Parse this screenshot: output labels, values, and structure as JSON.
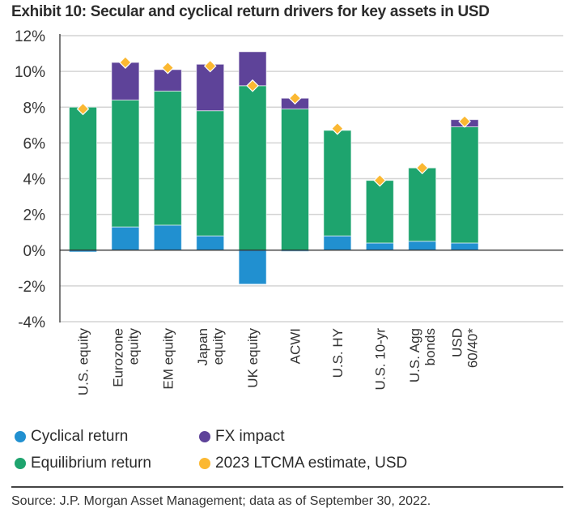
{
  "chart_data": {
    "type": "bar",
    "stacked": true,
    "title": "Exhibit 10: Secular and cyclical return drivers for key assets in USD",
    "xlabel": "",
    "ylabel": "",
    "ylim": [
      -4,
      12
    ],
    "yticks": [
      12,
      10,
      8,
      6,
      4,
      2,
      0,
      -2,
      -4
    ],
    "ytick_labels": [
      "12%",
      "10%",
      "8%",
      "6%",
      "4%",
      "2%",
      "0%",
      "-2%",
      "-4%"
    ],
    "grid": true,
    "categories": [
      [
        "U.S. equity"
      ],
      [
        "Eurozone",
        "equity"
      ],
      [
        "EM equity"
      ],
      [
        "Japan",
        "equity"
      ],
      [
        "UK equity"
      ],
      [
        "ACWI"
      ],
      [
        "U.S. HY"
      ],
      [
        "U.S. 10-yr"
      ],
      [
        "U.S. Agg",
        "bonds"
      ],
      [
        "USD",
        "60/40*"
      ]
    ],
    "series": [
      {
        "name": "Cyclical return",
        "color": "#2190d0",
        "values": [
          -0.1,
          1.3,
          1.4,
          0.8,
          -1.9,
          -0.05,
          0.8,
          0.4,
          0.5,
          0.4
        ]
      },
      {
        "name": "Equilibrium return",
        "color": "#1ea46e",
        "values": [
          8.0,
          7.1,
          7.5,
          7.0,
          9.2,
          7.9,
          5.9,
          3.5,
          4.1,
          6.5
        ]
      },
      {
        "name": "FX impact",
        "color": "#5e4399",
        "values": [
          0,
          2.1,
          1.2,
          2.6,
          1.9,
          0.6,
          0,
          0,
          0,
          0.4
        ]
      },
      {
        "name": "2023 LTCMA estimate, USD",
        "color": "#fbb832",
        "marker": "diamond",
        "values": [
          7.9,
          10.5,
          10.2,
          10.3,
          9.2,
          8.5,
          6.8,
          3.9,
          4.6,
          7.2
        ]
      }
    ],
    "legend_position": "bottom"
  },
  "legend": [
    {
      "label": "Cyclical return",
      "color": "#2190d0"
    },
    {
      "label": "FX impact",
      "color": "#5e4399"
    },
    {
      "label": "Equilibrium return",
      "color": "#1ea46e"
    },
    {
      "label": "2023 LTCMA estimate, USD",
      "color": "#fbb832"
    }
  ],
  "source": "Source: J.P. Morgan Asset Management; data as of September 30, 2022."
}
